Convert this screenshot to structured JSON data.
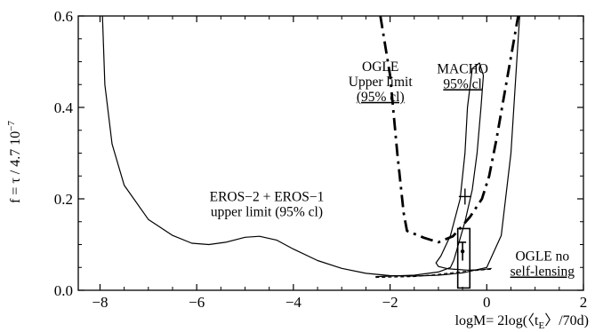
{
  "chart_data": {
    "type": "line",
    "xlabel": "logM= 2log(〈tₑ〉/70d)",
    "xlabel_parts": {
      "pre": "logM= 2log(〈t",
      "sub": "E",
      "post": "〉/70d)"
    },
    "ylabel": "f = τ / 4.7 10⁻⁷",
    "ylabel_parts": {
      "pre": "f = τ / 4.7 10",
      "sup": "−7"
    },
    "xlim": [
      -8.45,
      2
    ],
    "ylim": [
      0,
      0.6
    ],
    "x_ticks": [
      {
        "value": -8,
        "label": "−8"
      },
      {
        "value": -6,
        "label": "−6"
      },
      {
        "value": -4,
        "label": "−4"
      },
      {
        "value": -2,
        "label": "−2"
      },
      {
        "value": 0,
        "label": "0"
      },
      {
        "value": 2,
        "label": "2"
      }
    ],
    "y_ticks": [
      {
        "value": 0,
        "label": "0.0"
      },
      {
        "value": 0.2,
        "label": "0.2"
      },
      {
        "value": 0.4,
        "label": "0.4"
      },
      {
        "value": 0.6,
        "label": "0.6"
      }
    ],
    "series": [
      {
        "style": "solid",
        "points": [
          [
            -7.95,
            0.6
          ],
          [
            -7.9,
            0.45
          ],
          [
            -7.75,
            0.32
          ],
          [
            -7.5,
            0.23
          ],
          [
            -7.0,
            0.155
          ],
          [
            -6.5,
            0.12
          ],
          [
            -6.1,
            0.103
          ],
          [
            -5.75,
            0.1
          ],
          [
            -5.4,
            0.105
          ],
          [
            -5.0,
            0.116
          ],
          [
            -4.7,
            0.118
          ],
          [
            -4.35,
            0.11
          ],
          [
            -4.0,
            0.09
          ],
          [
            -3.5,
            0.065
          ],
          [
            -3.0,
            0.048
          ],
          [
            -2.5,
            0.037
          ],
          [
            -2.0,
            0.032
          ],
          [
            -1.5,
            0.031
          ],
          [
            -1.0,
            0.033
          ],
          [
            -0.5,
            0.038
          ],
          [
            0.0,
            0.05
          ],
          [
            0.3,
            0.12
          ],
          [
            0.5,
            0.3
          ],
          [
            0.62,
            0.5
          ],
          [
            0.68,
            0.6
          ]
        ]
      },
      {
        "style": "solid",
        "points": [
          [
            -2.3,
            0.03
          ],
          [
            -1.5,
            0.033
          ],
          [
            -1.0,
            0.04
          ],
          [
            -0.75,
            0.05
          ],
          [
            -0.68,
            0.066
          ],
          [
            -0.45,
            0.15
          ],
          [
            -0.3,
            0.22
          ],
          [
            -0.2,
            0.3
          ],
          [
            -0.12,
            0.4
          ],
          [
            -0.07,
            0.47
          ],
          [
            -0.15,
            0.497
          ],
          [
            -0.3,
            0.485
          ],
          [
            -0.4,
            0.4
          ],
          [
            -0.45,
            0.3
          ],
          [
            -0.55,
            0.2
          ],
          [
            -0.75,
            0.12
          ],
          [
            -0.95,
            0.075
          ],
          [
            -1.05,
            0.06
          ],
          [
            -1.0,
            0.052
          ],
          [
            -0.8,
            0.047
          ],
          [
            -0.4,
            0.044
          ],
          [
            -0.1,
            0.045
          ],
          [
            0.1,
            0.048
          ]
        ]
      },
      {
        "style": "dashed",
        "points": [
          [
            -2.3,
            0.028
          ],
          [
            -1.5,
            0.03
          ],
          [
            -1.0,
            0.035
          ],
          [
            -0.5,
            0.041
          ],
          [
            0.1,
            0.046
          ]
        ]
      },
      {
        "style": "dashdot",
        "points": [
          [
            -2.2,
            0.6
          ],
          [
            -2.0,
            0.47
          ],
          [
            -1.85,
            0.3
          ],
          [
            -1.72,
            0.17
          ],
          [
            -1.65,
            0.13
          ],
          [
            -1.3,
            0.115
          ],
          [
            -1.0,
            0.105
          ],
          [
            -0.7,
            0.118
          ],
          [
            -0.35,
            0.16
          ],
          [
            -0.1,
            0.2
          ],
          [
            0.05,
            0.25
          ],
          [
            0.2,
            0.33
          ],
          [
            0.4,
            0.45
          ],
          [
            0.55,
            0.54
          ],
          [
            0.65,
            0.6
          ]
        ]
      }
    ],
    "markers": [
      {
        "type": "cross",
        "x": -0.45,
        "y": 0.205
      },
      {
        "type": "rect",
        "x0": -0.6,
        "x1": -0.35,
        "y0": 0.005,
        "y1": 0.135
      },
      {
        "type": "error_bar",
        "x": -0.5,
        "y": 0.085,
        "y_low": 0.065,
        "y_high": 0.105
      }
    ],
    "annotations": [
      {
        "lines": [
          "OGLE",
          "Upper limit",
          "(95% cl)"
        ],
        "x": -2.2,
        "y": 0.48,
        "spell_line": 2
      },
      {
        "lines": [
          "MACHO",
          "95% cl"
        ],
        "x": -0.5,
        "y": 0.475,
        "spell_line": 1
      },
      {
        "lines": [
          "EROS−2 + EROS−1",
          "upper limit (95% cl)"
        ],
        "x": -4.55,
        "y": 0.195
      },
      {
        "lines": [
          "OGLE no",
          "self-lensing"
        ],
        "x": 1.15,
        "y": 0.065,
        "spell_line": 1
      }
    ]
  }
}
